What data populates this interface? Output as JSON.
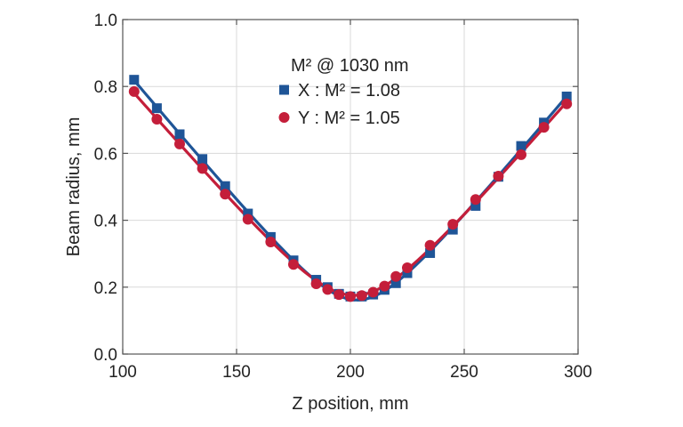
{
  "chart_data": {
    "type": "scatter",
    "title": "",
    "xlabel": "Z position, mm",
    "ylabel": "Beam radius, mm",
    "xlim": [
      100,
      300
    ],
    "ylim": [
      0.0,
      1.0
    ],
    "xticks": [
      "100",
      "150",
      "200",
      "250",
      "300"
    ],
    "yticks": [
      "0.0",
      "0.2",
      "0.4",
      "0.6",
      "0.8",
      "1.0"
    ],
    "grid": true,
    "legend_title": "M² @ 1030 nm",
    "legend_position": "top-center",
    "series": [
      {
        "name": "X : M² = 1.08",
        "marker": "square",
        "color": "#1f5597",
        "points": [
          [
            105,
            0.82
          ],
          [
            115,
            0.735
          ],
          [
            125,
            0.657
          ],
          [
            135,
            0.583
          ],
          [
            145,
            0.502
          ],
          [
            155,
            0.42
          ],
          [
            165,
            0.35
          ],
          [
            175,
            0.28
          ],
          [
            185,
            0.222
          ],
          [
            190,
            0.2
          ],
          [
            195,
            0.18
          ],
          [
            200,
            0.172
          ],
          [
            205,
            0.172
          ],
          [
            210,
            0.178
          ],
          [
            215,
            0.192
          ],
          [
            220,
            0.212
          ],
          [
            225,
            0.242
          ],
          [
            235,
            0.302
          ],
          [
            245,
            0.372
          ],
          [
            255,
            0.443
          ],
          [
            265,
            0.53
          ],
          [
            275,
            0.622
          ],
          [
            285,
            0.692
          ],
          [
            295,
            0.77
          ]
        ]
      },
      {
        "name": "Y : M² = 1.05",
        "marker": "circle",
        "color": "#c41e3a",
        "points": [
          [
            105,
            0.785
          ],
          [
            115,
            0.702
          ],
          [
            125,
            0.628
          ],
          [
            135,
            0.555
          ],
          [
            145,
            0.478
          ],
          [
            155,
            0.403
          ],
          [
            165,
            0.335
          ],
          [
            175,
            0.268
          ],
          [
            185,
            0.21
          ],
          [
            190,
            0.193
          ],
          [
            195,
            0.178
          ],
          [
            200,
            0.172
          ],
          [
            205,
            0.175
          ],
          [
            210,
            0.185
          ],
          [
            215,
            0.203
          ],
          [
            220,
            0.232
          ],
          [
            225,
            0.258
          ],
          [
            235,
            0.325
          ],
          [
            245,
            0.388
          ],
          [
            255,
            0.462
          ],
          [
            265,
            0.532
          ],
          [
            275,
            0.596
          ],
          [
            285,
            0.678
          ],
          [
            295,
            0.748
          ]
        ]
      }
    ]
  }
}
